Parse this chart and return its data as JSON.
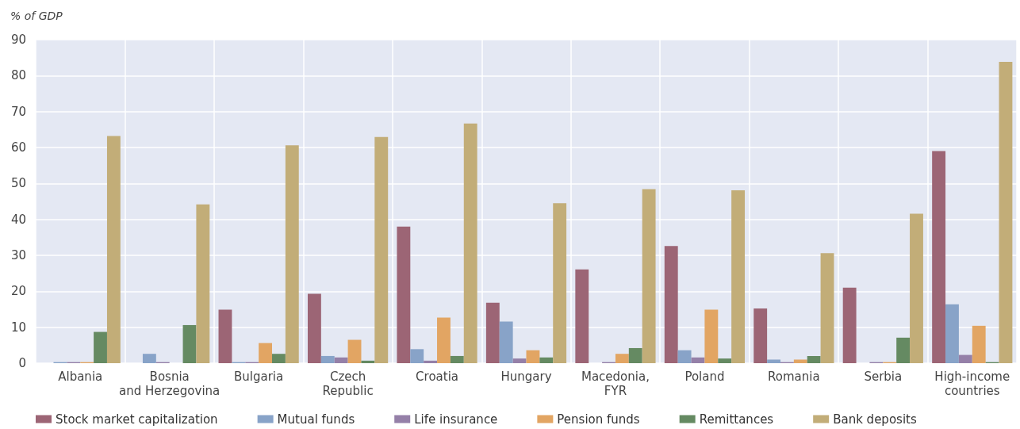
{
  "chart_data": {
    "type": "bar",
    "ylabel": "% of GDP",
    "categories": [
      "Albania",
      "Bosnia\nand Herzegovina",
      "Bulgaria",
      "Czech\nRepublic",
      "Croatia",
      "Hungary",
      "Macedonia,\nFYR",
      "Poland",
      "Romania",
      "Serbia",
      "High-income\ncountries"
    ],
    "series": [
      {
        "name": "Stock market capitalization",
        "color": "#9c6575",
        "values": [
          null,
          null,
          14.9,
          19.3,
          38.0,
          16.8,
          26.1,
          32.6,
          15.2,
          21.0,
          59.0
        ]
      },
      {
        "name": "Mutual funds",
        "color": "#88a3c8",
        "values": [
          0.3,
          2.6,
          0.3,
          2.0,
          3.9,
          11.6,
          null,
          3.6,
          1.0,
          null,
          16.4
        ]
      },
      {
        "name": "Life insurance",
        "color": "#9580a8",
        "values": [
          0.3,
          0.3,
          0.3,
          1.6,
          0.7,
          1.3,
          0.3,
          1.6,
          0.3,
          0.3,
          2.3
        ]
      },
      {
        "name": "Pension funds",
        "color": "#e2a563",
        "values": [
          0.3,
          null,
          5.6,
          6.5,
          12.7,
          3.6,
          2.6,
          14.9,
          1.0,
          0.3,
          10.4
        ]
      },
      {
        "name": "Remittances",
        "color": "#658a62",
        "values": [
          8.7,
          10.6,
          2.6,
          0.7,
          2.0,
          1.6,
          4.2,
          1.3,
          2.0,
          7.1,
          0.3
        ]
      },
      {
        "name": "Bank deposits",
        "color": "#c2ad78",
        "values": [
          63.2,
          44.2,
          60.6,
          62.9,
          66.7,
          44.5,
          48.4,
          48.1,
          30.6,
          41.6,
          83.8
        ]
      }
    ],
    "ylim": [
      0,
      90
    ],
    "yticks": [
      0,
      10,
      20,
      30,
      40,
      50,
      60,
      70,
      80,
      90
    ],
    "grid": true,
    "legend": "bottom"
  }
}
